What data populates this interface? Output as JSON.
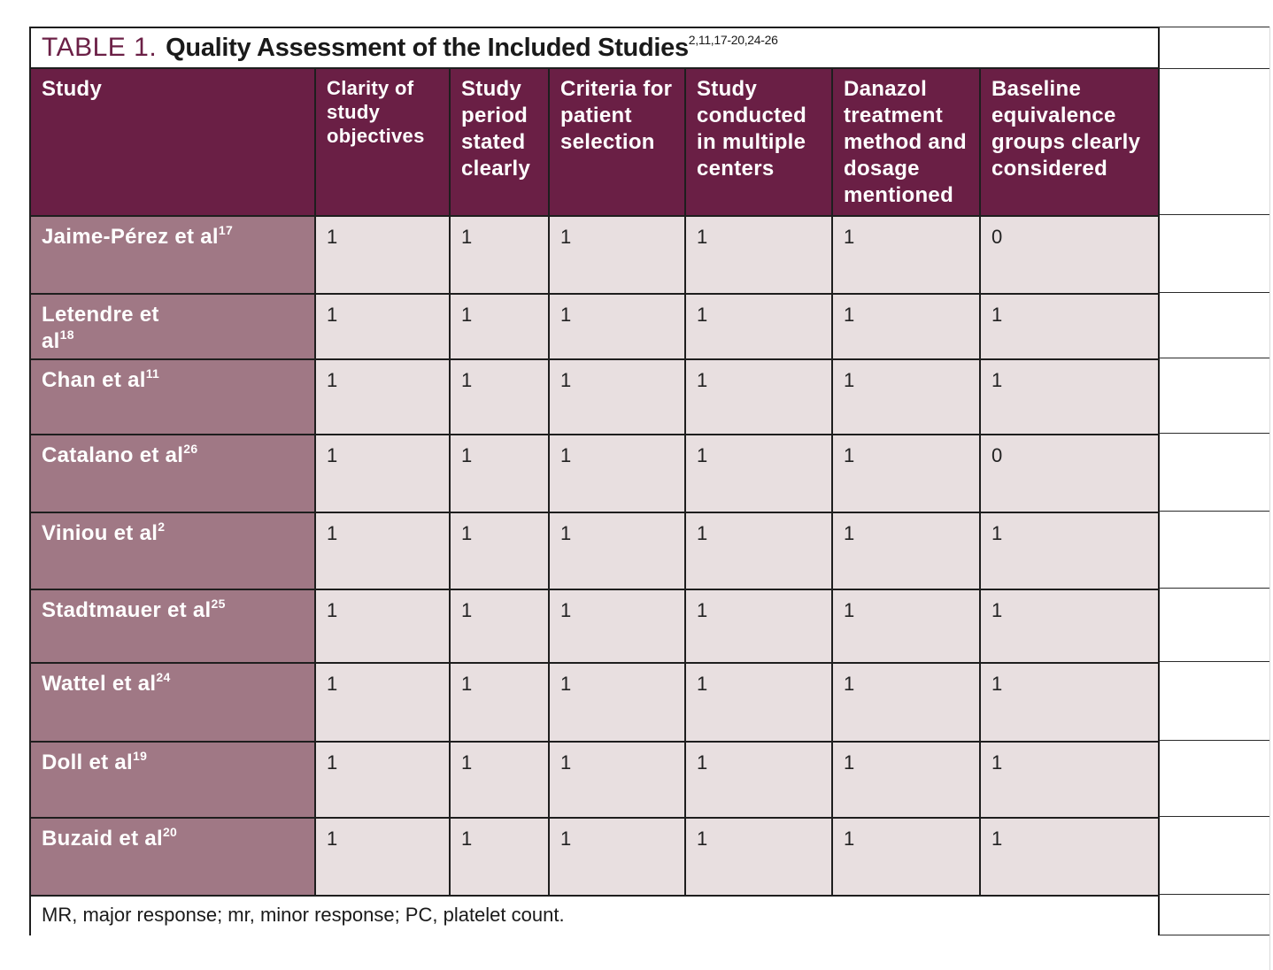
{
  "table": {
    "label": "TABLE 1.",
    "title": "Quality Assessment of the Included Studies",
    "title_refs": "2,11,17-20,24-26",
    "headers": [
      "Study",
      "Clarity of study objectives",
      "Study period stated clearly",
      "Criteria for patient selection",
      "Study conducted in multiple centers",
      "Danazol treatment method and dosage mentioned",
      "Baseline equivalence groups clearly considered"
    ],
    "rows": [
      {
        "study": "Jaime-Pérez et al",
        "ref": "17",
        "scores": [
          "1",
          "1",
          "1",
          "1",
          "1",
          "0"
        ]
      },
      {
        "study": "Letendre et al",
        "ref": "18",
        "scores": [
          "1",
          "1",
          "1",
          "1",
          "1",
          "1"
        ]
      },
      {
        "study": "Chan et al",
        "ref": "11",
        "scores": [
          "1",
          "1",
          "1",
          "1",
          "1",
          "1"
        ]
      },
      {
        "study": "Catalano et al",
        "ref": "26",
        "scores": [
          "1",
          "1",
          "1",
          "1",
          "1",
          "0"
        ]
      },
      {
        "study": "Viniou et al",
        "ref": "2",
        "scores": [
          "1",
          "1",
          "1",
          "1",
          "1",
          "1"
        ]
      },
      {
        "study": "Stadtmauer et al",
        "ref": "25",
        "scores": [
          "1",
          "1",
          "1",
          "1",
          "1",
          "1"
        ]
      },
      {
        "study": "Wattel et al",
        "ref": "24",
        "scores": [
          "1",
          "1",
          "1",
          "1",
          "1",
          "1"
        ]
      },
      {
        "study": "Doll et al",
        "ref": "19",
        "scores": [
          "1",
          "1",
          "1",
          "1",
          "1",
          "1"
        ]
      },
      {
        "study": "Buzaid et al",
        "ref": "20",
        "scores": [
          "1",
          "1",
          "1",
          "1",
          "1",
          "1"
        ]
      }
    ],
    "footnote": "MR, major response; mr, minor response; PC, platelet count."
  },
  "colors": {
    "header_bg": "#6a1f45",
    "study_col_bg": "#a07885",
    "cell_bg": "#e8dfe0",
    "title_label": "#6b2046"
  }
}
